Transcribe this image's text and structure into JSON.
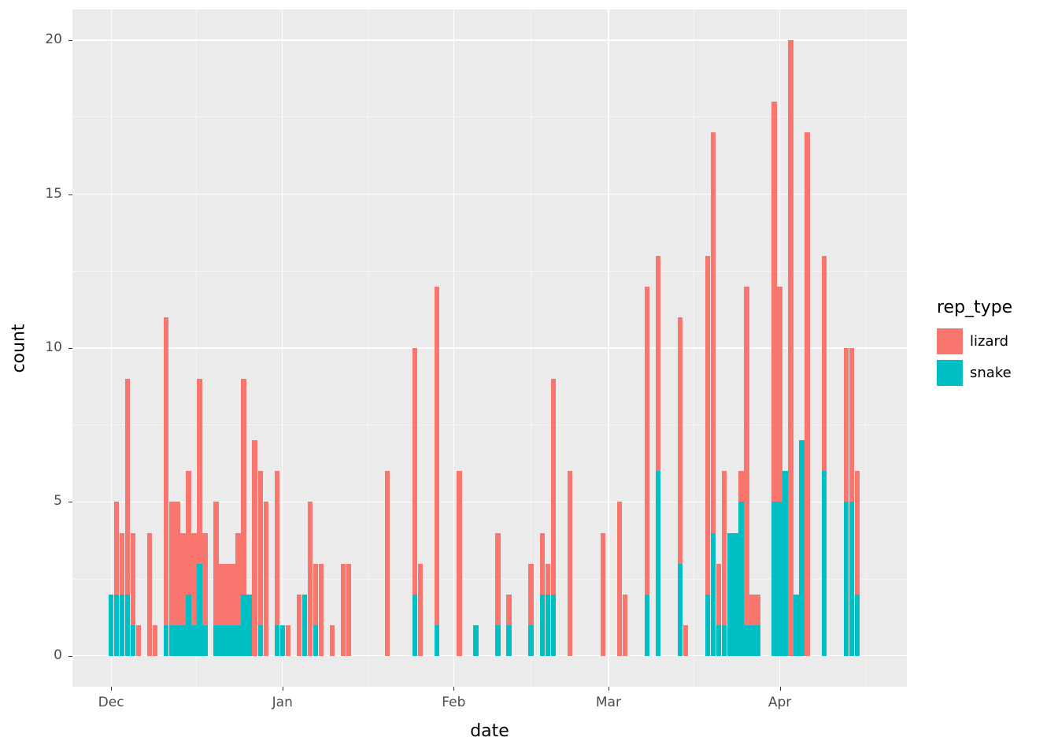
{
  "chart_data": {
    "type": "bar",
    "stacked": true,
    "title": "",
    "xlabel": "date",
    "ylabel": "count",
    "x_domain_days": [
      -7,
      144
    ],
    "y_domain": [
      -1,
      21
    ],
    "y_ticks": [
      0,
      5,
      10,
      15,
      20
    ],
    "y_minor": [
      2.5,
      7.5,
      12.5,
      17.5
    ],
    "x_ticks": [
      {
        "label": "Dec",
        "day": 0
      },
      {
        "label": "Jan",
        "day": 31
      },
      {
        "label": "Feb",
        "day": 62
      },
      {
        "label": "Mar",
        "day": 90
      },
      {
        "label": "Apr",
        "day": 121
      }
    ],
    "x_minor_days": [
      15.5,
      46.5,
      76,
      105.5,
      136.5
    ],
    "legend": {
      "title": "rep_type",
      "items": [
        {
          "label": "lizard",
          "color": "#F8766D"
        },
        {
          "label": "snake",
          "color": "#00BFC4"
        }
      ]
    },
    "series_colors": {
      "lizard": "#F8766D",
      "snake": "#00BFC4"
    },
    "bars_format": [
      "day_offset_from_Dec1",
      "lizard",
      "snake"
    ],
    "bars": [
      [
        0,
        0,
        2
      ],
      [
        1,
        3,
        2
      ],
      [
        2,
        2,
        2
      ],
      [
        3,
        7,
        2
      ],
      [
        4,
        3,
        1
      ],
      [
        5,
        1,
        0
      ],
      [
        7,
        4,
        0
      ],
      [
        8,
        1,
        0
      ],
      [
        10,
        10,
        1
      ],
      [
        11,
        4,
        1
      ],
      [
        12,
        4,
        1
      ],
      [
        13,
        3,
        1
      ],
      [
        14,
        4,
        2
      ],
      [
        15,
        3,
        1
      ],
      [
        16,
        6,
        3
      ],
      [
        17,
        3,
        1
      ],
      [
        19,
        4,
        1
      ],
      [
        20,
        2,
        1
      ],
      [
        21,
        2,
        1
      ],
      [
        22,
        2,
        1
      ],
      [
        23,
        3,
        1
      ],
      [
        24,
        7,
        2
      ],
      [
        25,
        0,
        2
      ],
      [
        26,
        7,
        0
      ],
      [
        27,
        5,
        1
      ],
      [
        28,
        5,
        0
      ],
      [
        30,
        5,
        1
      ],
      [
        31,
        0,
        1
      ],
      [
        32,
        1,
        0
      ],
      [
        34,
        2,
        0
      ],
      [
        35,
        0,
        2
      ],
      [
        36,
        5,
        0
      ],
      [
        37,
        2,
        1
      ],
      [
        38,
        3,
        0
      ],
      [
        40,
        1,
        0
      ],
      [
        42,
        3,
        0
      ],
      [
        43,
        3,
        0
      ],
      [
        50,
        6,
        0
      ],
      [
        55,
        8,
        2
      ],
      [
        56,
        3,
        0
      ],
      [
        59,
        11,
        1
      ],
      [
        63,
        6,
        0
      ],
      [
        66,
        0,
        1
      ],
      [
        70,
        3,
        1
      ],
      [
        72,
        1,
        1
      ],
      [
        76,
        2,
        1
      ],
      [
        78,
        2,
        2
      ],
      [
        79,
        1,
        2
      ],
      [
        80,
        7,
        2
      ],
      [
        83,
        6,
        0
      ],
      [
        89,
        4,
        0
      ],
      [
        92,
        5,
        0
      ],
      [
        93,
        2,
        0
      ],
      [
        97,
        10,
        2
      ],
      [
        99,
        7,
        6
      ],
      [
        103,
        8,
        3
      ],
      [
        104,
        1,
        0
      ],
      [
        108,
        11,
        2
      ],
      [
        109,
        13,
        4
      ],
      [
        110,
        2,
        1
      ],
      [
        111,
        5,
        1
      ],
      [
        112,
        0,
        4
      ],
      [
        113,
        0,
        4
      ],
      [
        114,
        1,
        5
      ],
      [
        115,
        11,
        1
      ],
      [
        116,
        1,
        1
      ],
      [
        117,
        1,
        1
      ],
      [
        120,
        13,
        5
      ],
      [
        121,
        7,
        5
      ],
      [
        122,
        0,
        6
      ],
      [
        123,
        20,
        0
      ],
      [
        124,
        0,
        2
      ],
      [
        125,
        0,
        7
      ],
      [
        126,
        17,
        0
      ],
      [
        129,
        7,
        6
      ],
      [
        133,
        5,
        5
      ],
      [
        134,
        5,
        5
      ],
      [
        135,
        4,
        2
      ]
    ]
  },
  "panel": {
    "background": "#EBEBEB",
    "grid_color": "#FFFFFF",
    "tick_color": "#333333",
    "tick_label_color": "#4D4D4D"
  }
}
